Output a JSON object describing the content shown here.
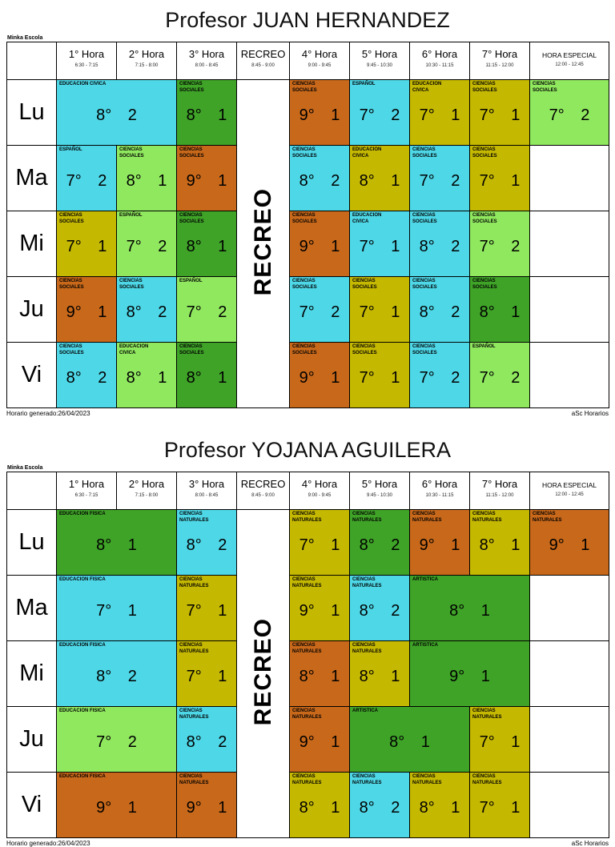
{
  "page": {
    "school_name": "Minka Escola",
    "recreo_label": "RECREO",
    "footer": {
      "generated": "Horario generado:26/04/2023",
      "brand": "aSc Horarios"
    }
  },
  "colors": {
    "cyan": "#4ed7e7",
    "green": "#3fa328",
    "orange": "#c8681a",
    "olive": "#c5b800",
    "lightgreen": "#90e85f"
  },
  "columns": [
    {
      "label": "1° Hora",
      "time": "6:30 - 7:15"
    },
    {
      "label": "2° Hora",
      "time": "7:15 - 8:00"
    },
    {
      "label": "3° Hora",
      "time": "8:00 - 8:45"
    },
    {
      "label": "RECREO",
      "time": "8:45 - 9:00"
    },
    {
      "label": "4° Hora",
      "time": "9:00 - 9:45"
    },
    {
      "label": "5° Hora",
      "time": "9:45 - 10:30"
    },
    {
      "label": "6° Hora",
      "time": "10:30 - 11:15"
    },
    {
      "label": "7° Hora",
      "time": "11:15 - 12:00"
    },
    {
      "label": "HORA ESPECIAL",
      "time": "12:00 - 12:45"
    }
  ],
  "tables": [
    {
      "title": "Profesor JUAN HERNANDEZ",
      "rows": [
        {
          "day": "Lu",
          "cells": [
            {
              "subject": "EDUCACION CIVICA",
              "value": "8° 2",
              "color": "cyan",
              "span": 2
            },
            {
              "subject": "CIENCIAS SOCIALES",
              "value": "8° 1",
              "color": "green"
            },
            {
              "subject": "CIENCIAS SOCIALES",
              "value": "9° 1",
              "color": "orange"
            },
            {
              "subject": "ESPAÑOL",
              "value": "7° 2",
              "color": "cyan"
            },
            {
              "subject": "EDUCACION CIVICA",
              "value": "7° 1",
              "color": "olive"
            },
            {
              "subject": "CIENCIAS SOCIALES",
              "value": "7° 1",
              "color": "olive"
            },
            {
              "subject": "CIENCIAS SOCIALES",
              "value": "7° 2",
              "color": "lightgreen"
            }
          ]
        },
        {
          "day": "Ma",
          "cells": [
            {
              "subject": "ESPAÑOL",
              "value": "7° 2",
              "color": "cyan"
            },
            {
              "subject": "CIENCIAS SOCIALES",
              "value": "8° 1",
              "color": "lightgreen"
            },
            {
              "subject": "CIENCIAS SOCIALES",
              "value": "9° 1",
              "color": "orange"
            },
            {
              "subject": "CIENCIAS SOCIALES",
              "value": "8° 2",
              "color": "cyan"
            },
            {
              "subject": "EDUCACION CIVICA",
              "value": "8° 1",
              "color": "olive"
            },
            {
              "subject": "CIENCIAS SOCIALES",
              "value": "7° 2",
              "color": "cyan"
            },
            {
              "subject": "CIENCIAS SOCIALES",
              "value": "7° 1",
              "color": "olive"
            },
            {
              "empty": true
            }
          ]
        },
        {
          "day": "Mi",
          "cells": [
            {
              "subject": "CIENCIAS SOCIALES",
              "value": "7° 1",
              "color": "olive"
            },
            {
              "subject": "ESPAÑOL",
              "value": "7° 2",
              "color": "lightgreen"
            },
            {
              "subject": "CIENCIAS SOCIALES",
              "value": "8° 1",
              "color": "green"
            },
            {
              "subject": "CIENCIAS SOCIALES",
              "value": "9° 1",
              "color": "orange"
            },
            {
              "subject": "EDUCACION CIVICA",
              "value": "7° 1",
              "color": "cyan"
            },
            {
              "subject": "CIENCIAS SOCIALES",
              "value": "8° 2",
              "color": "cyan"
            },
            {
              "subject": "CIENCIAS SOCIALES",
              "value": "7° 2",
              "color": "lightgreen"
            },
            {
              "empty": true
            }
          ]
        },
        {
          "day": "Ju",
          "cells": [
            {
              "subject": "CIENCIAS SOCIALES",
              "value": "9° 1",
              "color": "orange"
            },
            {
              "subject": "CIENCIAS SOCIALES",
              "value": "8° 2",
              "color": "cyan"
            },
            {
              "subject": "ESPAÑOL",
              "value": "7° 2",
              "color": "lightgreen"
            },
            {
              "subject": "CIENCIAS SOCIALES",
              "value": "7° 2",
              "color": "cyan"
            },
            {
              "subject": "CIENCIAS SOCIALES",
              "value": "7° 1",
              "color": "olive"
            },
            {
              "subject": "CIENCIAS SOCIALES",
              "value": "8° 2",
              "color": "cyan"
            },
            {
              "subject": "CIENCIAS SOCIALES",
              "value": "8° 1",
              "color": "green"
            },
            {
              "empty": true
            }
          ]
        },
        {
          "day": "Vi",
          "cells": [
            {
              "subject": "CIENCIAS SOCIALES",
              "value": "8° 2",
              "color": "cyan"
            },
            {
              "subject": "EDUCACION CIVICA",
              "value": "8° 1",
              "color": "lightgreen"
            },
            {
              "subject": "CIENCIAS SOCIALES",
              "value": "8° 1",
              "color": "green"
            },
            {
              "subject": "CIENCIAS SOCIALES",
              "value": "9° 1",
              "color": "orange"
            },
            {
              "subject": "CIENCIAS SOCIALES",
              "value": "7° 1",
              "color": "olive"
            },
            {
              "subject": "CIENCIAS SOCIALES",
              "value": "7° 2",
              "color": "cyan"
            },
            {
              "subject": "ESPAÑOL",
              "value": "7° 2",
              "color": "lightgreen"
            },
            {
              "empty": true
            }
          ]
        }
      ]
    },
    {
      "title": "Profesor YOJANA AGUILERA",
      "rows": [
        {
          "day": "Lu",
          "cells": [
            {
              "subject": "EDUCACION FISICA",
              "value": "8° 1",
              "color": "green",
              "span": 2
            },
            {
              "subject": "CIENCIAS NATURALES",
              "value": "8° 2",
              "color": "cyan"
            },
            {
              "subject": "CIENCIAS NATURALES",
              "value": "7° 1",
              "color": "olive"
            },
            {
              "subject": "CIENCIAS NATURALES",
              "value": "8° 2",
              "color": "green"
            },
            {
              "subject": "CIENCIAS NATURALES",
              "value": "9° 1",
              "color": "orange"
            },
            {
              "subject": "CIENCIAS NATURALES",
              "value": "8° 1",
              "color": "olive"
            },
            {
              "subject": "CIENCIAS NATURALES",
              "value": "9° 1",
              "color": "orange"
            }
          ]
        },
        {
          "day": "Ma",
          "cells": [
            {
              "subject": "EDUCACION FISICA",
              "value": "7° 1",
              "color": "cyan",
              "span": 2
            },
            {
              "subject": "CIENCIAS NATURALES",
              "value": "7° 1",
              "color": "olive"
            },
            {
              "subject": "CIENCIAS NATURALES",
              "value": "9° 1",
              "color": "olive"
            },
            {
              "subject": "CIENCIAS NATURALES",
              "value": "8° 2",
              "color": "cyan"
            },
            {
              "subject": "ARTISTICA",
              "value": "8° 1",
              "color": "green",
              "span": 2
            },
            {
              "empty": true
            }
          ]
        },
        {
          "day": "Mi",
          "cells": [
            {
              "subject": "EDUCACION FISICA",
              "value": "8° 2",
              "color": "cyan",
              "span": 2
            },
            {
              "subject": "CIENCIAS NATURALES",
              "value": "7° 1",
              "color": "olive"
            },
            {
              "subject": "CIENCIAS NATURALES",
              "value": "8° 1",
              "color": "orange"
            },
            {
              "subject": "CIENCIAS NATURALES",
              "value": "8° 1",
              "color": "olive"
            },
            {
              "subject": "ARTISTICA",
              "value": "9° 1",
              "color": "green",
              "span": 2
            },
            {
              "empty": true
            }
          ]
        },
        {
          "day": "Ju",
          "cells": [
            {
              "subject": "EDUCACION FISICA",
              "value": "7° 2",
              "color": "lightgreen",
              "span": 2
            },
            {
              "subject": "CIENCIAS NATURALES",
              "value": "8° 2",
              "color": "cyan"
            },
            {
              "subject": "CIENCIAS NATURALES",
              "value": "9° 1",
              "color": "orange"
            },
            {
              "subject": "ARTISTICA",
              "value": "8° 1",
              "color": "green",
              "span": 2
            },
            {
              "subject": "CIENCIAS NATURALES",
              "value": "7° 1",
              "color": "olive"
            },
            {
              "empty": true
            }
          ]
        },
        {
          "day": "Vi",
          "cells": [
            {
              "subject": "EDUCACION FISICA",
              "value": "9° 1",
              "color": "orange",
              "span": 2
            },
            {
              "subject": "CIENCIAS NATURALES",
              "value": "9° 1",
              "color": "orange"
            },
            {
              "subject": "CIENCIAS NATURALES",
              "value": "8° 1",
              "color": "olive"
            },
            {
              "subject": "CIENCIAS NATURALES",
              "value": "8° 2",
              "color": "cyan"
            },
            {
              "subject": "CIENCIAS NATURALES",
              "value": "8° 1",
              "color": "olive"
            },
            {
              "subject": "CIENCIAS NATURALES",
              "value": "7° 1",
              "color": "olive"
            },
            {
              "empty": true
            }
          ]
        }
      ]
    }
  ]
}
